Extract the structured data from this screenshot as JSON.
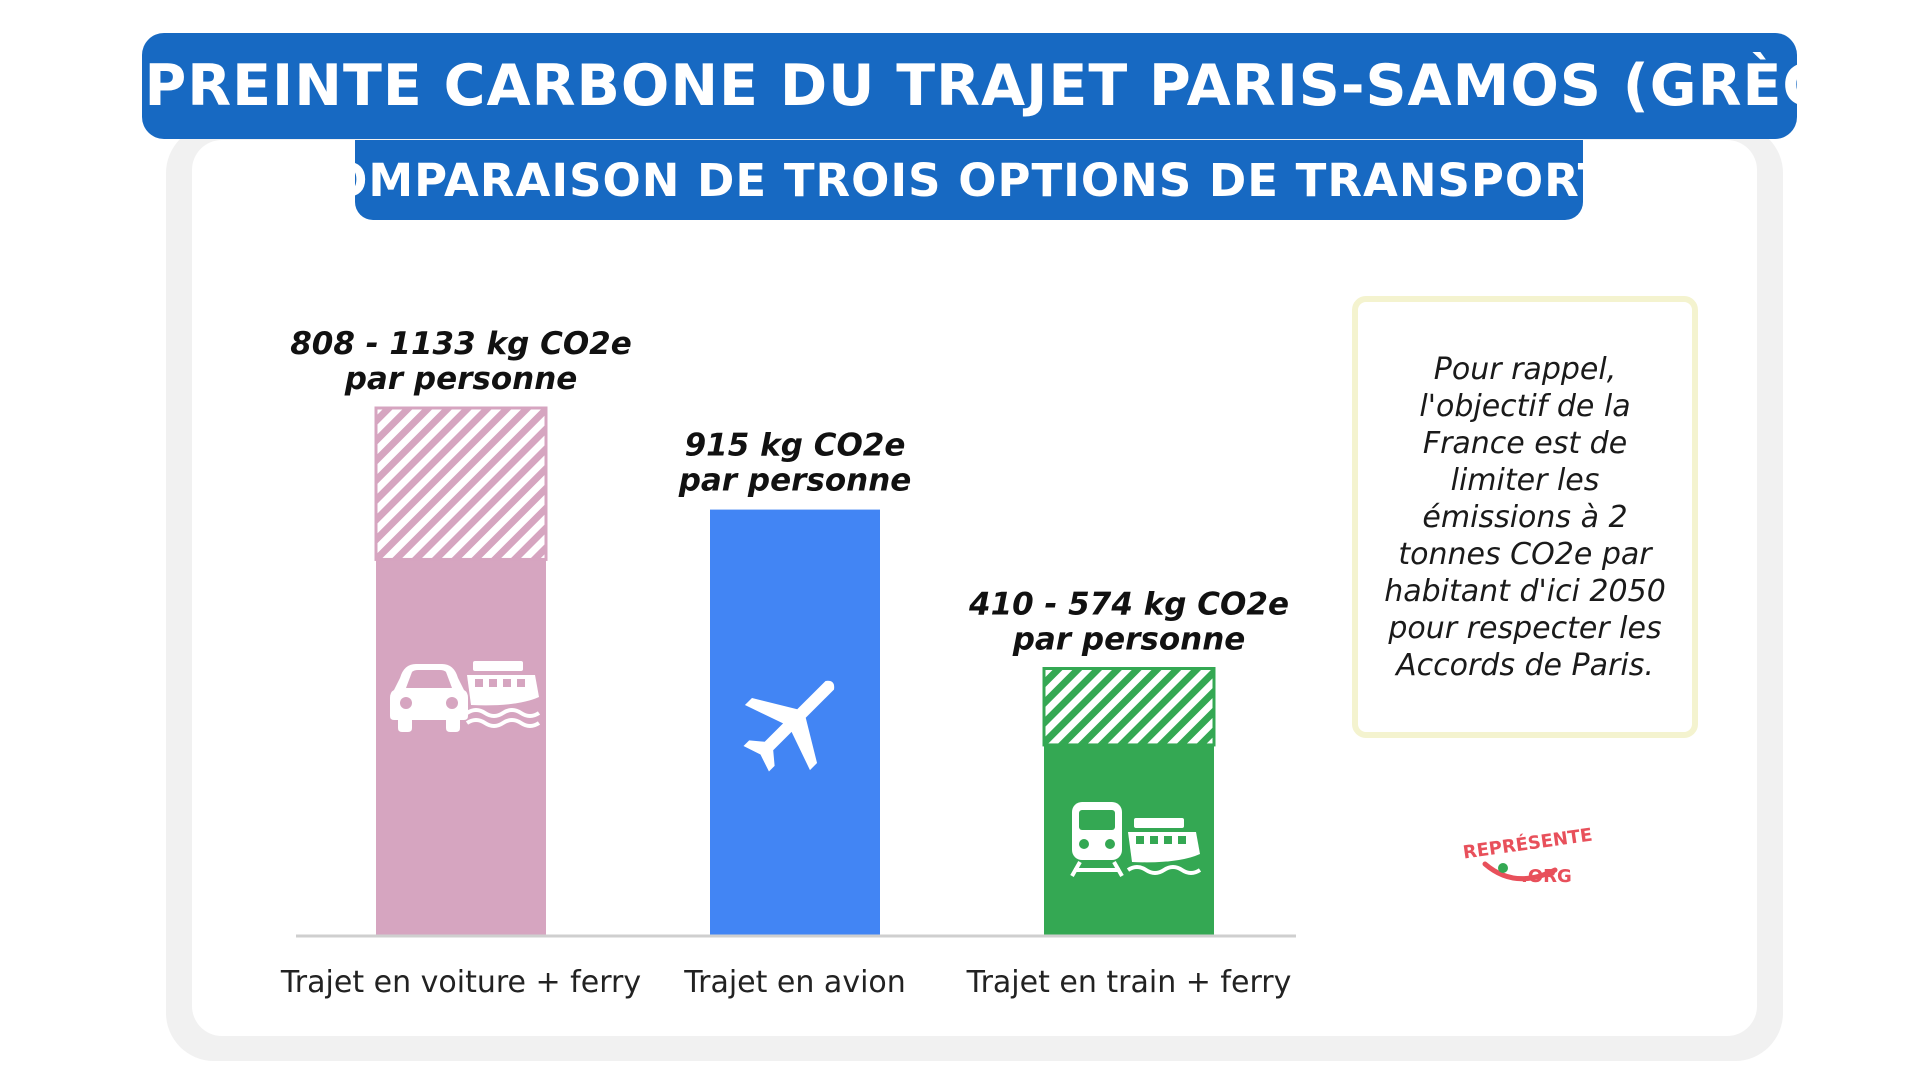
{
  "header": {
    "title": "Empreinte carbone du trajet Paris-Samos (Grèce)",
    "subtitle": "Comparaison de trois options de transports"
  },
  "chart_data": {
    "type": "bar",
    "categories": [
      "Trajet en voiture + ferry",
      "Trajet en avion",
      "Trajet en train + ferry"
    ],
    "series": [
      {
        "values_low": [
          808,
          915,
          410
        ],
        "values_high": [
          1133,
          915,
          574
        ]
      }
    ],
    "value_labels": [
      [
        "808 - 1133 kg CO2e",
        "par personne"
      ],
      [
        "915 kg CO2e",
        "par personne"
      ],
      [
        "410 - 574 kg CO2e",
        "par personne"
      ]
    ],
    "unit": "kg CO2e par personne",
    "ylim": [
      0,
      1133
    ],
    "grid": false,
    "colors": [
      "#d6a5c0",
      "#4285f4",
      "#34a853"
    ],
    "icons": [
      [
        "car-icon",
        "ferry-icon"
      ],
      [
        "airplane-icon"
      ],
      [
        "train-icon",
        "ferry-icon"
      ]
    ]
  },
  "note": {
    "text": "Pour rappel, l'objectif de la France est de limiter les émissions à 2 tonnes CO2e par habitant d'ici 2050 pour respecter les Accords de Paris."
  },
  "logo": {
    "text_top": "REPRÉSENTE",
    "text_bottom": ".ORG",
    "color": "#e8505b"
  }
}
